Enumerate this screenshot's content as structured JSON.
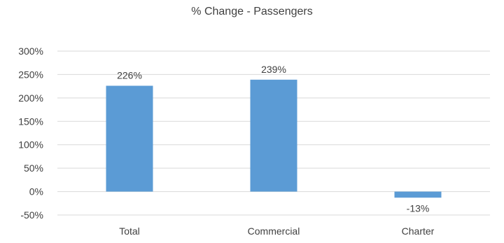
{
  "chart_data": {
    "type": "bar",
    "title": "% Change - Passengers",
    "categories": [
      "Total",
      "Commercial",
      "Charter"
    ],
    "values": [
      226,
      239,
      -13
    ],
    "data_labels": [
      "226%",
      "239%",
      "-13%"
    ],
    "yticks": [
      300,
      250,
      200,
      150,
      100,
      50,
      0,
      -50
    ],
    "ytick_labels": [
      "300%",
      "250%",
      "200%",
      "150%",
      "100%",
      "50%",
      "0%",
      "-50%"
    ],
    "ylim": [
      -50,
      300
    ],
    "grid": true,
    "legend": "none",
    "bar_color": "#5b9bd5",
    "grid_color": "#d9d9d9"
  }
}
